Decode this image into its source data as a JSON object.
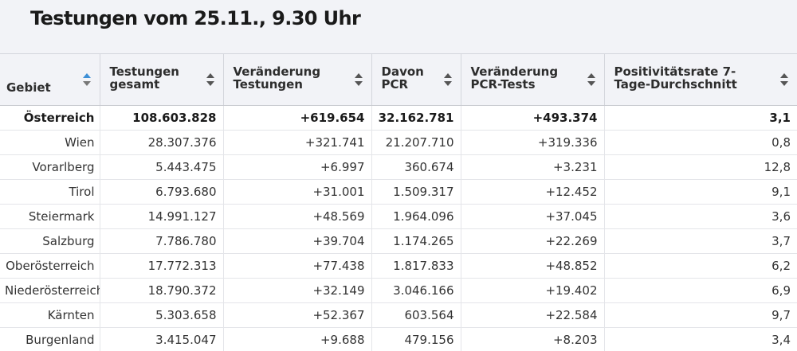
{
  "title": "Testungen vom 25.11., 9.30 Uhr",
  "columns": [
    {
      "label": "Gebiet"
    },
    {
      "label": "Testungen gesamt"
    },
    {
      "label": "Veränderung Testungen"
    },
    {
      "label": "Davon PCR"
    },
    {
      "label": "Veränderung PCR-Tests"
    },
    {
      "label": "Positivitätsrate 7-Tage-Durchschnitt"
    }
  ],
  "sort_icon": "sort-arrows-icon",
  "accent_color": "#3d8fd6",
  "rows": [
    {
      "gebiet": "Österreich",
      "testungen": "108.603.828",
      "veraenderung": "+619.654",
      "pcr": "32.162.781",
      "veraenderung_pcr": "+493.374",
      "positivitaet": "3,1"
    },
    {
      "gebiet": "Wien",
      "testungen": "28.307.376",
      "veraenderung": "+321.741",
      "pcr": "21.207.710",
      "veraenderung_pcr": "+319.336",
      "positivitaet": "0,8"
    },
    {
      "gebiet": "Vorarlberg",
      "testungen": "5.443.475",
      "veraenderung": "+6.997",
      "pcr": "360.674",
      "veraenderung_pcr": "+3.231",
      "positivitaet": "12,8"
    },
    {
      "gebiet": "Tirol",
      "testungen": "6.793.680",
      "veraenderung": "+31.001",
      "pcr": "1.509.317",
      "veraenderung_pcr": "+12.452",
      "positivitaet": "9,1"
    },
    {
      "gebiet": "Steiermark",
      "testungen": "14.991.127",
      "veraenderung": "+48.569",
      "pcr": "1.964.096",
      "veraenderung_pcr": "+37.045",
      "positivitaet": "3,6"
    },
    {
      "gebiet": "Salzburg",
      "testungen": "7.786.780",
      "veraenderung": "+39.704",
      "pcr": "1.174.265",
      "veraenderung_pcr": "+22.269",
      "positivitaet": "3,7"
    },
    {
      "gebiet": "Oberösterreich",
      "testungen": "17.772.313",
      "veraenderung": "+77.438",
      "pcr": "1.817.833",
      "veraenderung_pcr": "+48.852",
      "positivitaet": "6,2"
    },
    {
      "gebiet": "Niederösterreich",
      "testungen": "18.790.372",
      "veraenderung": "+32.149",
      "pcr": "3.046.166",
      "veraenderung_pcr": "+19.402",
      "positivitaet": "6,9"
    },
    {
      "gebiet": "Kärnten",
      "testungen": "5.303.658",
      "veraenderung": "+52.367",
      "pcr": "603.564",
      "veraenderung_pcr": "+22.584",
      "positivitaet": "9,7"
    },
    {
      "gebiet": "Burgenland",
      "testungen": "3.415.047",
      "veraenderung": "+9.688",
      "pcr": "479.156",
      "veraenderung_pcr": "+8.203",
      "positivitaet": "3,4"
    }
  ]
}
